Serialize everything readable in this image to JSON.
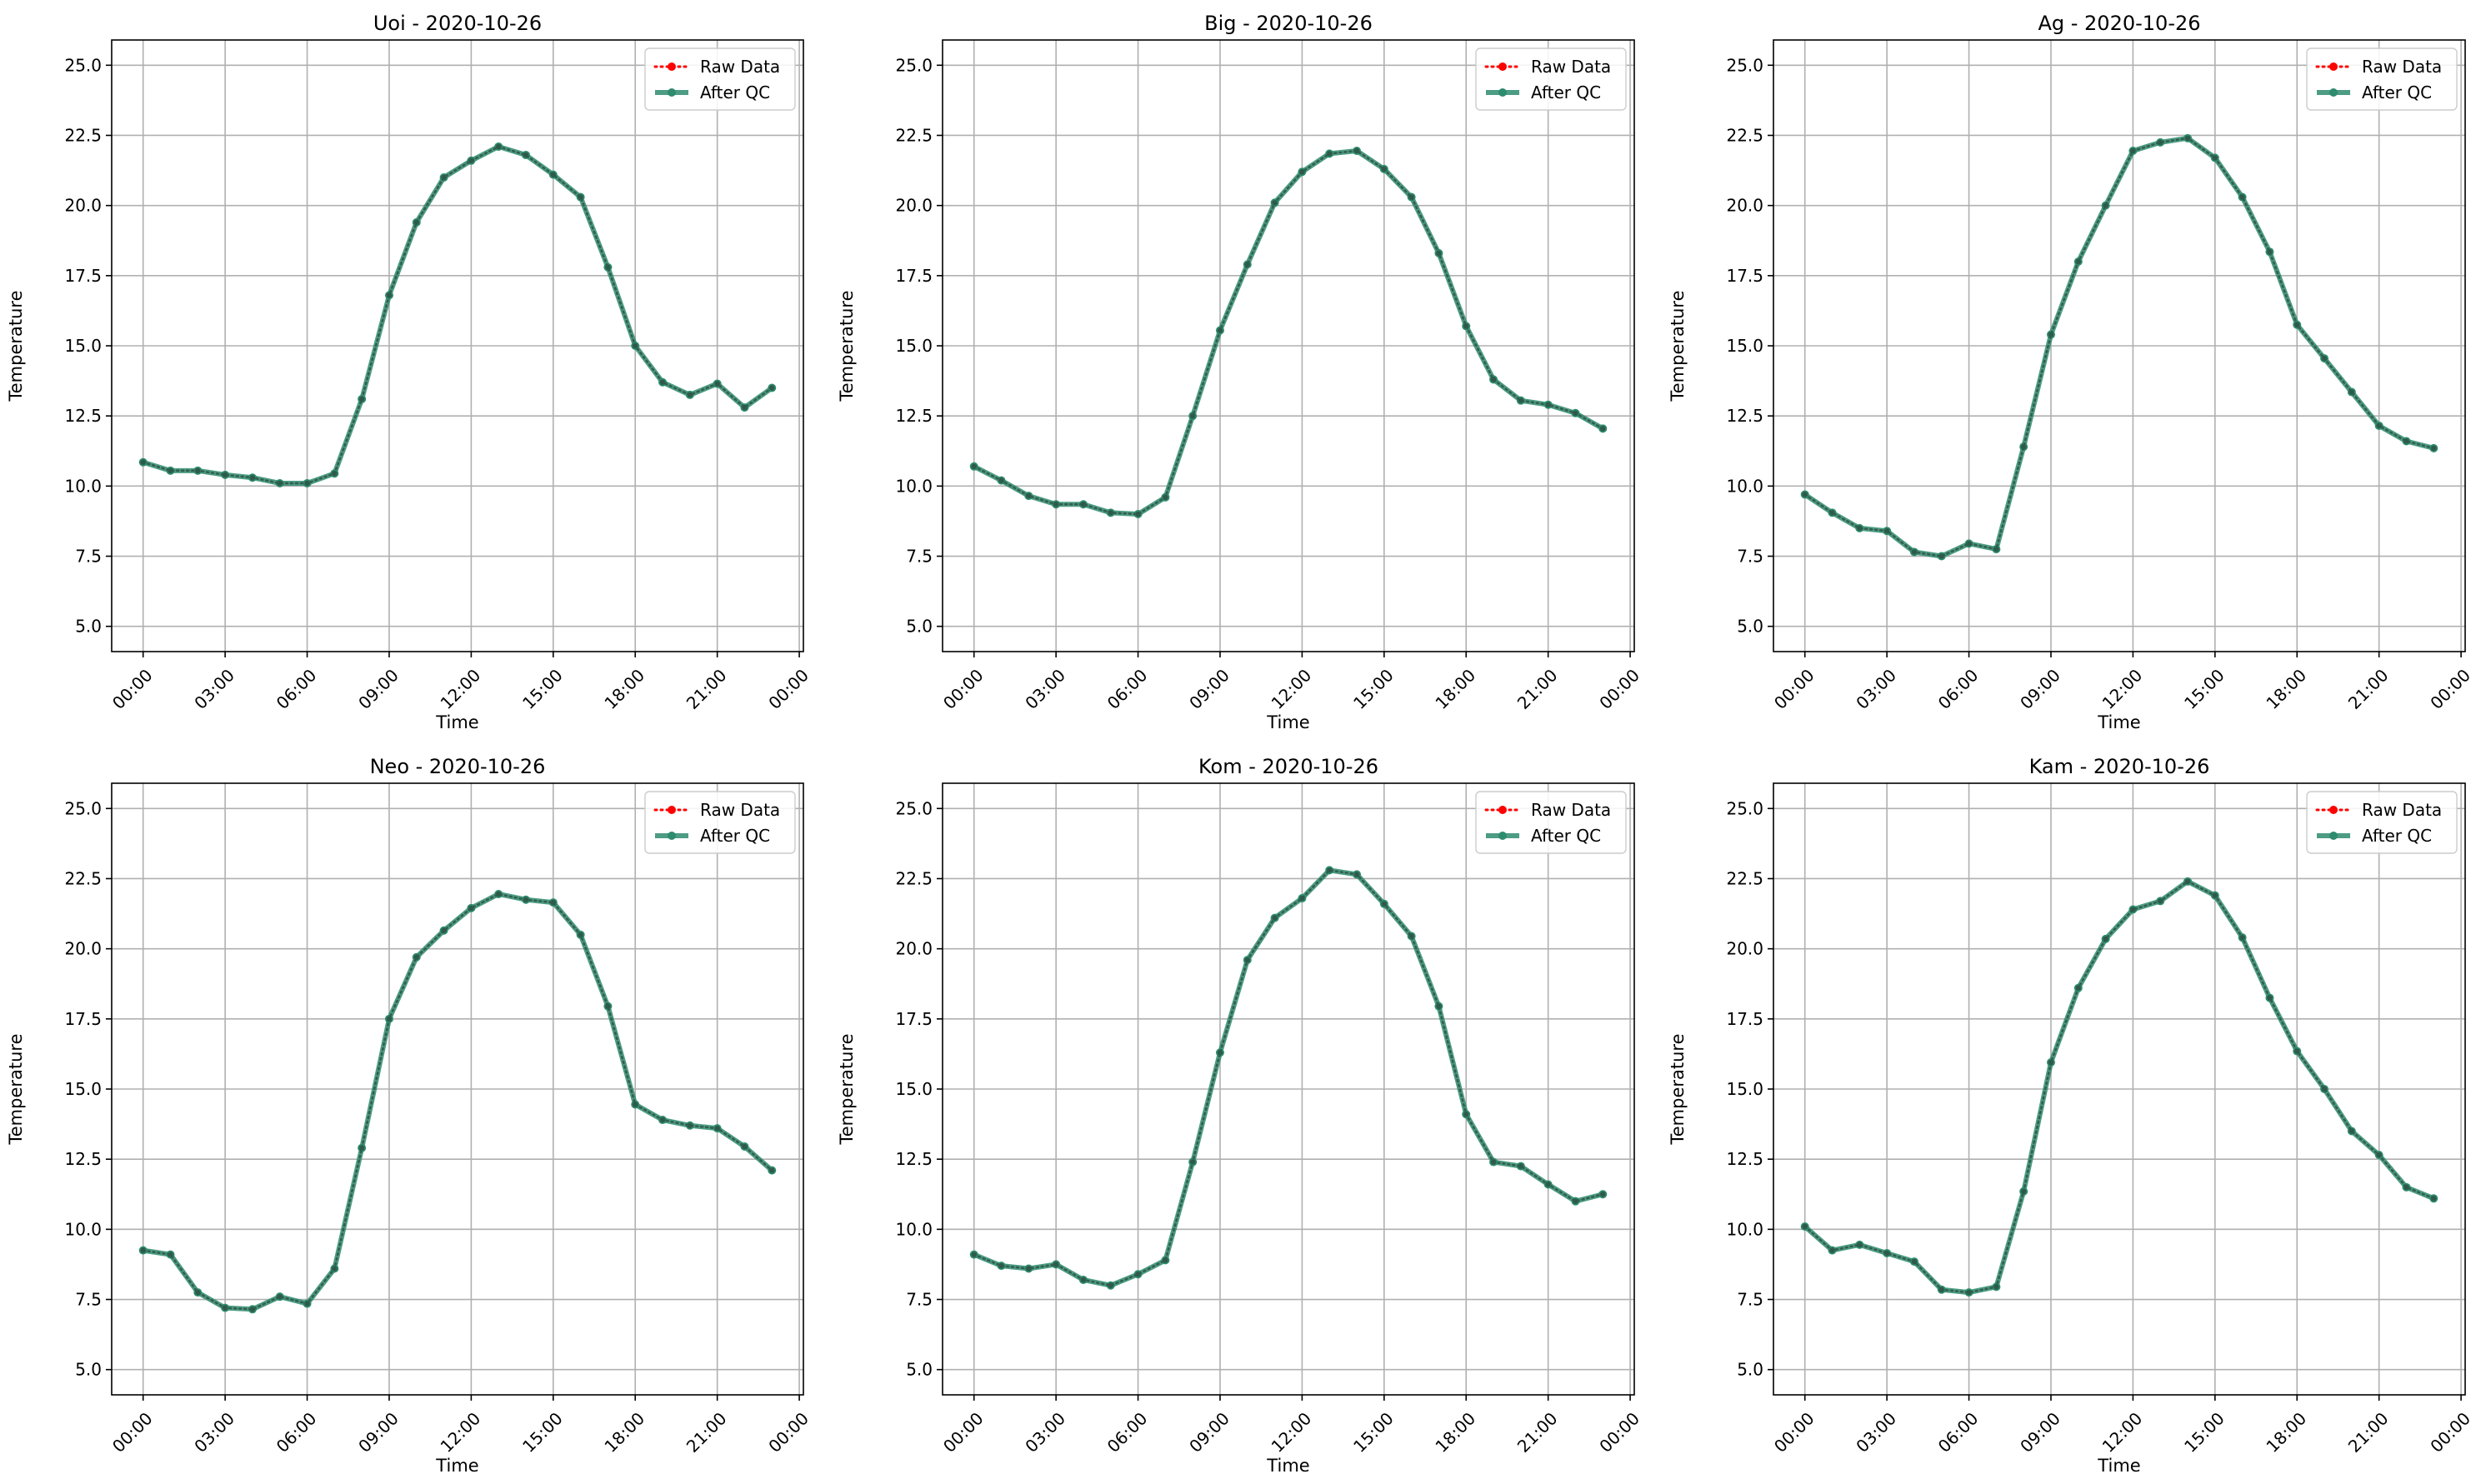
{
  "chart_data": [
    {
      "type": "line",
      "title": "Uoi - 2020-10-26",
      "xlabel": "Time",
      "ylabel": "Temperature",
      "xticks": [
        "00:00",
        "03:00",
        "06:00",
        "09:00",
        "12:00",
        "15:00",
        "18:00",
        "21:00",
        "00:00"
      ],
      "yticks": [
        "5.0",
        "7.5",
        "10.0",
        "12.5",
        "15.0",
        "17.5",
        "20.0",
        "22.5",
        "25.0"
      ],
      "ylim": [
        4.1,
        25.9
      ],
      "xlim_hours": [
        -1.15,
        24.15
      ],
      "grid": true,
      "legend_position": "top-right",
      "x_hours": [
        0,
        1,
        2,
        3,
        4,
        5,
        6,
        7,
        8,
        9,
        10,
        11,
        12,
        13,
        14,
        15,
        16,
        17,
        18,
        19,
        20,
        21,
        22,
        23
      ],
      "series": [
        {
          "name": "Raw Data",
          "color": "#ff0000",
          "style": "dotted-marker",
          "values": [
            10.85,
            10.55,
            10.55,
            10.4,
            10.3,
            10.1,
            10.1,
            10.45,
            13.1,
            16.8,
            19.4,
            21.0,
            21.6,
            22.1,
            21.8,
            21.1,
            20.3,
            17.8,
            15.0,
            13.7,
            13.25,
            13.65,
            12.8,
            13.5
          ]
        },
        {
          "name": "After QC",
          "color": "#2e8b6e",
          "style": "solid-marker",
          "values": [
            10.85,
            10.55,
            10.55,
            10.4,
            10.3,
            10.1,
            10.1,
            10.45,
            13.1,
            16.8,
            19.4,
            21.0,
            21.6,
            22.1,
            21.8,
            21.1,
            20.3,
            17.8,
            15.0,
            13.7,
            13.25,
            13.65,
            12.8,
            13.5
          ]
        }
      ]
    },
    {
      "type": "line",
      "title": "Big - 2020-10-26",
      "xlabel": "Time",
      "ylabel": "Temperature",
      "xticks": [
        "00:00",
        "03:00",
        "06:00",
        "09:00",
        "12:00",
        "15:00",
        "18:00",
        "21:00",
        "00:00"
      ],
      "yticks": [
        "5.0",
        "7.5",
        "10.0",
        "12.5",
        "15.0",
        "17.5",
        "20.0",
        "22.5",
        "25.0"
      ],
      "ylim": [
        4.1,
        25.9
      ],
      "xlim_hours": [
        -1.15,
        24.15
      ],
      "grid": true,
      "legend_position": "top-right",
      "x_hours": [
        0,
        1,
        2,
        3,
        4,
        5,
        6,
        7,
        8,
        9,
        10,
        11,
        12,
        13,
        14,
        15,
        16,
        17,
        18,
        19,
        20,
        21,
        22,
        23
      ],
      "series": [
        {
          "name": "Raw Data",
          "color": "#ff0000",
          "style": "dotted-marker",
          "values": [
            10.7,
            10.2,
            9.65,
            9.35,
            9.35,
            9.05,
            9.0,
            9.6,
            12.5,
            15.55,
            17.9,
            20.1,
            21.2,
            21.85,
            21.95,
            21.3,
            20.3,
            18.3,
            15.7,
            13.8,
            13.05,
            12.9,
            12.6,
            12.05
          ]
        },
        {
          "name": "After QC",
          "color": "#2e8b6e",
          "style": "solid-marker",
          "values": [
            10.7,
            10.2,
            9.65,
            9.35,
            9.35,
            9.05,
            9.0,
            9.6,
            12.5,
            15.55,
            17.9,
            20.1,
            21.2,
            21.85,
            21.95,
            21.3,
            20.3,
            18.3,
            15.7,
            13.8,
            13.05,
            12.9,
            12.6,
            12.05
          ]
        }
      ]
    },
    {
      "type": "line",
      "title": "Ag - 2020-10-26",
      "xlabel": "Time",
      "ylabel": "Temperature",
      "xticks": [
        "00:00",
        "03:00",
        "06:00",
        "09:00",
        "12:00",
        "15:00",
        "18:00",
        "21:00",
        "00:00"
      ],
      "yticks": [
        "5.0",
        "7.5",
        "10.0",
        "12.5",
        "15.0",
        "17.5",
        "20.0",
        "22.5",
        "25.0"
      ],
      "ylim": [
        4.1,
        25.9
      ],
      "xlim_hours": [
        -1.15,
        24.15
      ],
      "grid": true,
      "legend_position": "top-right",
      "x_hours": [
        0,
        1,
        2,
        3,
        4,
        5,
        6,
        7,
        8,
        9,
        10,
        11,
        12,
        13,
        14,
        15,
        16,
        17,
        18,
        19,
        20,
        21,
        22,
        23
      ],
      "series": [
        {
          "name": "Raw Data",
          "color": "#ff0000",
          "style": "dotted-marker",
          "values": [
            9.7,
            9.05,
            8.5,
            8.4,
            7.65,
            7.5,
            7.95,
            7.75,
            11.4,
            15.4,
            18.0,
            20.0,
            21.95,
            22.25,
            22.4,
            21.7,
            20.3,
            18.35,
            15.75,
            14.55,
            13.35,
            12.15,
            11.6,
            11.35
          ]
        },
        {
          "name": "After QC",
          "color": "#2e8b6e",
          "style": "solid-marker",
          "values": [
            9.7,
            9.05,
            8.5,
            8.4,
            7.65,
            7.5,
            7.95,
            7.75,
            11.4,
            15.4,
            18.0,
            20.0,
            21.95,
            22.25,
            22.4,
            21.7,
            20.3,
            18.35,
            15.75,
            14.55,
            13.35,
            12.15,
            11.6,
            11.35
          ]
        }
      ]
    },
    {
      "type": "line",
      "title": "Neo - 2020-10-26",
      "xlabel": "Time",
      "ylabel": "Temperature",
      "xticks": [
        "00:00",
        "03:00",
        "06:00",
        "09:00",
        "12:00",
        "15:00",
        "18:00",
        "21:00",
        "00:00"
      ],
      "yticks": [
        "5.0",
        "7.5",
        "10.0",
        "12.5",
        "15.0",
        "17.5",
        "20.0",
        "22.5",
        "25.0"
      ],
      "ylim": [
        4.1,
        25.9
      ],
      "xlim_hours": [
        -1.15,
        24.15
      ],
      "grid": true,
      "legend_position": "top-right",
      "x_hours": [
        0,
        1,
        2,
        3,
        4,
        5,
        6,
        7,
        8,
        9,
        10,
        11,
        12,
        13,
        14,
        15,
        16,
        17,
        18,
        19,
        20,
        21,
        22,
        23
      ],
      "series": [
        {
          "name": "Raw Data",
          "color": "#ff0000",
          "style": "dotted-marker",
          "values": [
            9.25,
            9.1,
            7.75,
            7.2,
            7.15,
            7.6,
            7.35,
            8.6,
            12.9,
            17.5,
            19.7,
            20.65,
            21.45,
            21.95,
            21.75,
            21.65,
            20.5,
            17.95,
            14.45,
            13.9,
            13.7,
            13.6,
            12.95,
            12.1
          ]
        },
        {
          "name": "After QC",
          "color": "#2e8b6e",
          "style": "solid-marker",
          "values": [
            9.25,
            9.1,
            7.75,
            7.2,
            7.15,
            7.6,
            7.35,
            8.6,
            12.9,
            17.5,
            19.7,
            20.65,
            21.45,
            21.95,
            21.75,
            21.65,
            20.5,
            17.95,
            14.45,
            13.9,
            13.7,
            13.6,
            12.95,
            12.1
          ]
        }
      ]
    },
    {
      "type": "line",
      "title": "Kom - 2020-10-26",
      "xlabel": "Time",
      "ylabel": "Temperature",
      "xticks": [
        "00:00",
        "03:00",
        "06:00",
        "09:00",
        "12:00",
        "15:00",
        "18:00",
        "21:00",
        "00:00"
      ],
      "yticks": [
        "5.0",
        "7.5",
        "10.0",
        "12.5",
        "15.0",
        "17.5",
        "20.0",
        "22.5",
        "25.0"
      ],
      "ylim": [
        4.1,
        25.9
      ],
      "xlim_hours": [
        -1.15,
        24.15
      ],
      "grid": true,
      "legend_position": "top-right",
      "x_hours": [
        0,
        1,
        2,
        3,
        4,
        5,
        6,
        7,
        8,
        9,
        10,
        11,
        12,
        13,
        14,
        15,
        16,
        17,
        18,
        19,
        20,
        21,
        22,
        23
      ],
      "series": [
        {
          "name": "Raw Data",
          "color": "#ff0000",
          "style": "dotted-marker",
          "values": [
            9.1,
            8.7,
            8.6,
            8.75,
            8.2,
            8.0,
            8.4,
            8.9,
            12.4,
            16.3,
            19.6,
            21.1,
            21.8,
            22.8,
            22.65,
            21.6,
            20.45,
            17.95,
            14.1,
            12.4,
            12.25,
            11.6,
            11.0,
            11.25
          ]
        },
        {
          "name": "After QC",
          "color": "#2e8b6e",
          "style": "solid-marker",
          "values": [
            9.1,
            8.7,
            8.6,
            8.75,
            8.2,
            8.0,
            8.4,
            8.9,
            12.4,
            16.3,
            19.6,
            21.1,
            21.8,
            22.8,
            22.65,
            21.6,
            20.45,
            17.95,
            14.1,
            12.4,
            12.25,
            11.6,
            11.0,
            11.25
          ]
        }
      ]
    },
    {
      "type": "line",
      "title": "Kam - 2020-10-26",
      "xlabel": "Time",
      "ylabel": "Temperature",
      "xticks": [
        "00:00",
        "03:00",
        "06:00",
        "09:00",
        "12:00",
        "15:00",
        "18:00",
        "21:00",
        "00:00"
      ],
      "yticks": [
        "5.0",
        "7.5",
        "10.0",
        "12.5",
        "15.0",
        "17.5",
        "20.0",
        "22.5",
        "25.0"
      ],
      "ylim": [
        4.1,
        25.9
      ],
      "xlim_hours": [
        -1.15,
        24.15
      ],
      "grid": true,
      "legend_position": "top-right",
      "x_hours": [
        0,
        1,
        2,
        3,
        4,
        5,
        6,
        7,
        8,
        9,
        10,
        11,
        12,
        13,
        14,
        15,
        16,
        17,
        18,
        19,
        20,
        21,
        22,
        23
      ],
      "series": [
        {
          "name": "Raw Data",
          "color": "#ff0000",
          "style": "dotted-marker",
          "values": [
            10.1,
            9.25,
            9.45,
            9.15,
            8.85,
            7.85,
            7.75,
            7.95,
            11.35,
            15.95,
            18.6,
            20.35,
            21.4,
            21.7,
            22.4,
            21.9,
            20.4,
            18.25,
            16.35,
            15.0,
            13.5,
            12.65,
            11.5,
            11.1
          ]
        },
        {
          "name": "After QC",
          "color": "#2e8b6e",
          "style": "solid-marker",
          "values": [
            10.1,
            9.25,
            9.45,
            9.15,
            8.85,
            7.85,
            7.75,
            7.95,
            11.35,
            15.95,
            18.6,
            20.35,
            21.4,
            21.7,
            22.4,
            21.9,
            20.4,
            18.25,
            16.35,
            15.0,
            13.5,
            12.65,
            11.5,
            11.1
          ]
        }
      ]
    }
  ]
}
